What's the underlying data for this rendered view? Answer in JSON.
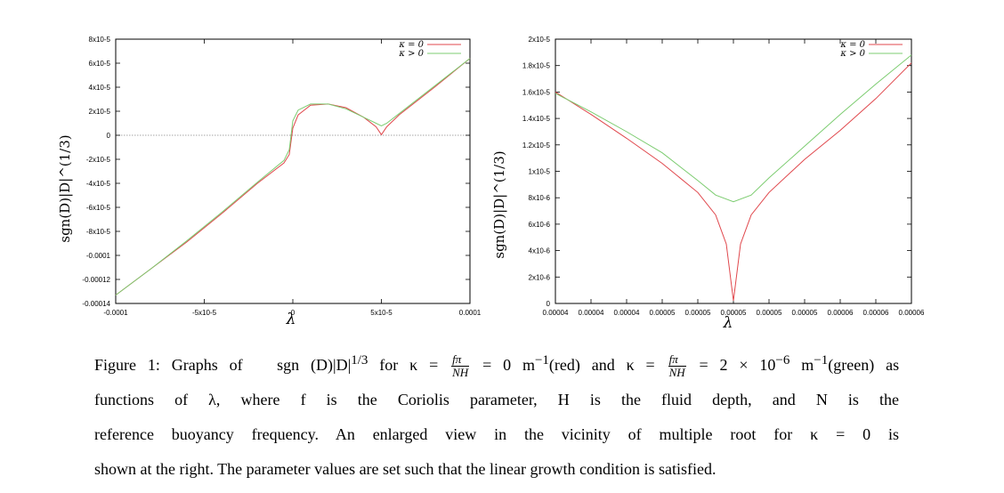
{
  "figure": {
    "colors": {
      "red": "#e0474c",
      "green": "#7ccc70"
    },
    "caption": {
      "line1_a": "Figure 1: Graphs of",
      "line1_expr": "sgn (D)|D|",
      "line1_exp": "1/3",
      "line1_b": "for κ =",
      "frac_num": "fπ",
      "frac_den": "NH",
      "line1_c": "= 0 m",
      "line1_c_exp": "−1",
      "line1_d": "(red) and κ =",
      "line1_e": "= 2 × 10",
      "line1_e_exp": "−6",
      "line1_f": "m",
      "line1_f_exp": "−1",
      "line1_g": "(green) as",
      "line2": "functions of λ, where f is the Coriolis parameter, H is the fluid depth, and N is the",
      "line3": "reference buoyancy frequency. An enlarged view in the vicinity of multiple root for κ = 0 is",
      "line4": "shown at the right. The parameter values are set such that the linear growth condition is satisfied."
    }
  },
  "chart_data": [
    {
      "type": "line",
      "xlabel": "λ",
      "ylabel": "sgn(D)|D|^(1/3)",
      "xlim": [
        -0.0001,
        0.0001
      ],
      "ylim": [
        -0.00014,
        8e-05
      ],
      "x_tick_labels": [
        "-0.0001",
        "-5x10-5",
        "0",
        "5x10-5",
        "0.0001"
      ],
      "y_tick_labels": [
        "8x10-5",
        "6x10-5",
        "4x10-5",
        "2x10-5",
        "0",
        "-2x10-5",
        "-4x10-5",
        "-6x10-5",
        "-8x10-5",
        "-0.0001",
        "-0.00012",
        "-0.00014"
      ],
      "legend": [
        "κ = 0",
        "κ > 0"
      ],
      "legend_position": "top-right",
      "zero_line": true,
      "series": [
        {
          "name": "κ = 0",
          "color": "red",
          "x": [
            -0.0001,
            -8e-05,
            -6e-05,
            -4e-05,
            -2e-05,
            -5e-06,
            -2e-06,
            0,
            3e-06,
            1e-05,
            2e-05,
            3e-05,
            4e-05,
            4.7e-05,
            5e-05,
            5.3e-05,
            6e-05,
            8e-05,
            0.0001
          ],
          "y": [
            -0.000133,
            -0.000111,
            -8.9e-05,
            -6.5e-05,
            -4e-05,
            -2.3e-05,
            -1.6e-05,
            6e-06,
            1.7e-05,
            2.5e-05,
            2.6e-05,
            2.3e-05,
            1.5e-05,
            7e-06,
            5e-07,
            7e-06,
            1.7e-05,
            4e-05,
            6.4e-05
          ]
        },
        {
          "name": "κ > 0",
          "color": "green",
          "x": [
            -0.0001,
            -8e-05,
            -6e-05,
            -4e-05,
            -2e-05,
            -5e-06,
            -2e-06,
            0,
            3e-06,
            1e-05,
            2e-05,
            3e-05,
            4e-05,
            4.7e-05,
            5e-05,
            5.3e-05,
            6e-05,
            8e-05,
            0.0001
          ],
          "y": [
            -0.000133,
            -0.000111,
            -8.8e-05,
            -6.4e-05,
            -3.9e-05,
            -2.1e-05,
            -1.2e-05,
            1.2e-05,
            2.1e-05,
            2.6e-05,
            2.6e-05,
            2.2e-05,
            1.5e-05,
            1e-05,
            7.8e-06,
            1e-05,
            1.8e-05,
            4.1e-05,
            6.4e-05
          ]
        }
      ]
    },
    {
      "type": "line",
      "xlabel": "λ",
      "ylabel": "sgn(D)|D|^(1/3)",
      "xlim": [
        4e-05,
        6e-05
      ],
      "ylim": [
        0,
        2e-05
      ],
      "x_tick_labels": [
        "0.00004",
        "0.00004",
        "0.00004",
        "0.00005",
        "0.00005",
        "0.00005",
        "0.00005",
        "0.00005",
        "0.00006",
        "0.00006",
        "0.00006"
      ],
      "y_tick_labels": [
        "2x10-5",
        "1.8x10-5",
        "1.6x10-5",
        "1.4x10-5",
        "1.2x10-5",
        "1x10-5",
        "8x10-6",
        "6x10-6",
        "4x10-6",
        "2x10-6",
        "0"
      ],
      "legend": [
        "κ = 0",
        "κ > 0"
      ],
      "legend_position": "top-right",
      "series": [
        {
          "name": "κ = 0",
          "color": "red",
          "x": [
            4e-05,
            4.2e-05,
            4.4e-05,
            4.6e-05,
            4.8e-05,
            4.9e-05,
            4.96e-05,
            5e-05,
            5.04e-05,
            5.1e-05,
            5.2e-05,
            5.4e-05,
            5.6e-05,
            5.8e-05,
            6e-05
          ],
          "y": [
            1.6e-05,
            1.43e-05,
            1.25e-05,
            1.06e-05,
            8.4e-06,
            6.7e-06,
            4.5e-06,
            2e-07,
            4.5e-06,
            6.7e-06,
            8.4e-06,
            1.09e-05,
            1.31e-05,
            1.55e-05,
            1.82e-05
          ]
        },
        {
          "name": "κ > 0",
          "color": "green",
          "x": [
            4e-05,
            4.2e-05,
            4.4e-05,
            4.6e-05,
            4.8e-05,
            4.9e-05,
            5e-05,
            5.1e-05,
            5.2e-05,
            5.4e-05,
            5.6e-05,
            5.8e-05,
            6e-05
          ],
          "y": [
            1.59e-05,
            1.45e-05,
            1.3e-05,
            1.14e-05,
            9.3e-06,
            8.2e-06,
            7.7e-06,
            8.2e-06,
            9.5e-06,
            1.19e-05,
            1.43e-05,
            1.66e-05,
            1.88e-05
          ]
        }
      ]
    }
  ]
}
